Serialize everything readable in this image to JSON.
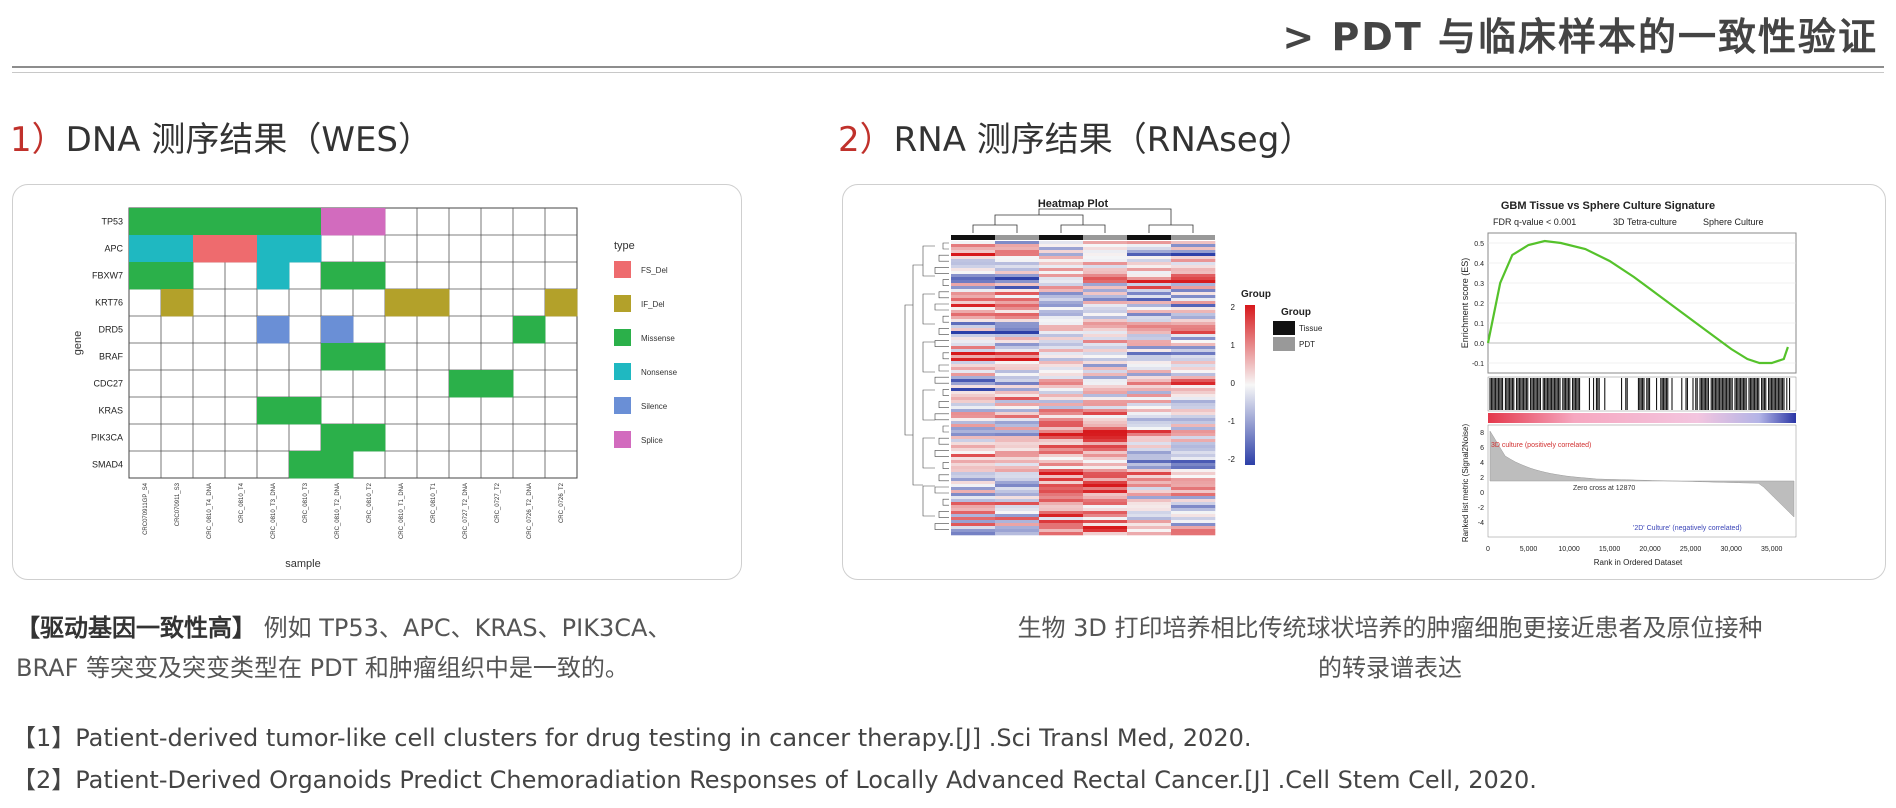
{
  "header": {
    "title": ">  PDT 与临床样本的一致性验证"
  },
  "section1": {
    "num": "1）",
    "title": "DNA 测序结果（WES）"
  },
  "section2": {
    "num": "2）",
    "title": "RNA 测序结果（RNAseg）"
  },
  "wes": {
    "genes": [
      "TP53",
      "APC",
      "FBXW7",
      "KRT76",
      "DRD5",
      "BRAF",
      "CDC27",
      "KRAS",
      "PIK3CA",
      "SMAD4"
    ],
    "samples": [
      "CRC070911GP_S4",
      "CRC070911_S3",
      "CRC_0810_T4_DNA",
      "CRC_0810_T4",
      "CRC_0810_T3_DNA",
      "CRC_0810_T3",
      "CRC_0810_T2_DNA",
      "CRC_0810_T2",
      "CRC_0810_T1_DNA",
      "CRC_0810_T1",
      "CRC_0727_T2_DNA",
      "CRC_0727_T2",
      "CRC_0726_T2_DNA",
      "CRC_0726_T2"
    ],
    "y_label": "gene",
    "x_label": "sample",
    "legend_title": "type",
    "types": [
      {
        "name": "FS_Del",
        "color": "#ee6b6e"
      },
      {
        "name": "IF_Del",
        "color": "#b3a12a"
      },
      {
        "name": "Missense",
        "color": "#2bb04a"
      },
      {
        "name": "Nonsense",
        "color": "#1fb8c1"
      },
      {
        "name": "Silence",
        "color": "#6a8fd6"
      },
      {
        "name": "Splice",
        "color": "#d26bbe"
      }
    ],
    "cells": [
      [
        0,
        0,
        2
      ],
      [
        0,
        1,
        2
      ],
      [
        0,
        2,
        2
      ],
      [
        0,
        3,
        2
      ],
      [
        0,
        4,
        2
      ],
      [
        0,
        5,
        2
      ],
      [
        0,
        6,
        5
      ],
      [
        0,
        7,
        5
      ],
      [
        1,
        0,
        3
      ],
      [
        1,
        1,
        3
      ],
      [
        1,
        2,
        0
      ],
      [
        1,
        3,
        0
      ],
      [
        1,
        4,
        3
      ],
      [
        1,
        5,
        3
      ],
      [
        2,
        0,
        2
      ],
      [
        2,
        1,
        2
      ],
      [
        2,
        4,
        3
      ],
      [
        2,
        6,
        2
      ],
      [
        2,
        7,
        2
      ],
      [
        3,
        1,
        1
      ],
      [
        3,
        8,
        1
      ],
      [
        3,
        9,
        1
      ],
      [
        3,
        13,
        1
      ],
      [
        4,
        4,
        4
      ],
      [
        4,
        6,
        4
      ],
      [
        4,
        12,
        2
      ],
      [
        5,
        6,
        2
      ],
      [
        5,
        7,
        2
      ],
      [
        6,
        10,
        2
      ],
      [
        6,
        11,
        2
      ],
      [
        7,
        4,
        2
      ],
      [
        7,
        5,
        2
      ],
      [
        8,
        6,
        2
      ],
      [
        8,
        7,
        2
      ],
      [
        9,
        5,
        2
      ],
      [
        9,
        6,
        2
      ]
    ]
  },
  "rna": {
    "heatmap_title": "Heatmap Plot",
    "scale_title": "Group",
    "scale_ticks": [
      "2",
      "1",
      "0",
      "-1",
      "-2"
    ],
    "group_legend_title": "Group",
    "group_legend": [
      {
        "name": "Tissue",
        "color": "#111111"
      },
      {
        "name": "PDT",
        "color": "#999999"
      }
    ],
    "gsea": {
      "title": "GBM Tissue vs Sphere Culture Signature",
      "stat": "FDR q-value < 0.001",
      "label_left": "3D Tetra-culture",
      "label_right": "Sphere Culture",
      "y_label": "Enrichment score (ES)",
      "y_ticks": [
        "0.5",
        "0.4",
        "0.3",
        "0.2",
        "0.1",
        "0.0",
        "-0.1"
      ],
      "lower_y_label": "Ranked list metric (Signal2Noise)",
      "lower_ticks": [
        "8",
        "6",
        "4",
        "2",
        "0",
        "-2",
        "-4"
      ],
      "annot_pos": "3D culture (positively correlated)",
      "annot_zero": "Zero cross at 12870",
      "annot_neg": "'2D' Culture' (negatively correlated)",
      "x_ticks": [
        "0",
        "5,000",
        "10,000",
        "15,000",
        "20,000",
        "25,000",
        "30,000",
        "35,000"
      ],
      "x_label": "Rank in Ordered Dataset",
      "es_curve": [
        [
          0,
          0.0
        ],
        [
          1500,
          0.3
        ],
        [
          3000,
          0.44
        ],
        [
          5000,
          0.49
        ],
        [
          7000,
          0.51
        ],
        [
          9000,
          0.5
        ],
        [
          12000,
          0.47
        ],
        [
          15000,
          0.41
        ],
        [
          18000,
          0.33
        ],
        [
          21000,
          0.24
        ],
        [
          24000,
          0.15
        ],
        [
          27000,
          0.06
        ],
        [
          30000,
          -0.03
        ],
        [
          32000,
          -0.08
        ],
        [
          33500,
          -0.1
        ],
        [
          35000,
          -0.1
        ],
        [
          36500,
          -0.08
        ],
        [
          37000,
          -0.02
        ]
      ]
    }
  },
  "desc1": {
    "bold": "【驱动基因一致性高】",
    "line1": " 例如 TP53、APC、KRAS、PIK3CA、",
    "line2": "BRAF 等突变及突变类型在 PDT 和肿瘤组织中是一致的。"
  },
  "desc2": {
    "line1": "生物 3D 打印培养相比传统球状培养的肿瘤细胞更接近患者及原位接种",
    "line2": "的转录谱表达"
  },
  "refs": [
    "【1】Patient-derived tumor-like cell clusters for drug testing in cancer therapy.[J] .Sci Transl Med, 2020.",
    "【2】Patient-Derived Organoids Predict Chemoradiation Responses of Locally Advanced Rectal Cancer.[J] .Cell Stem Cell, 2020."
  ]
}
